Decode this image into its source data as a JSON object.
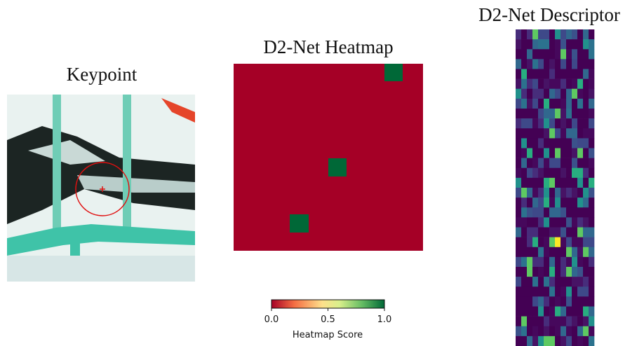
{
  "panels": {
    "keypoint": {
      "title": "Keypoint"
    },
    "heatmap": {
      "title": "D2-Net Heatmap",
      "colorbar": {
        "label": "Heatmap Score",
        "lim": [
          0,
          1
        ],
        "ticks": [
          {
            "value": 0,
            "label": "0.0"
          },
          {
            "value": 0.5,
            "label": "0.5"
          },
          {
            "value": 1,
            "label": "1.0"
          }
        ]
      }
    },
    "descriptor": {
      "title": "D2-Net Descriptor"
    }
  }
}
